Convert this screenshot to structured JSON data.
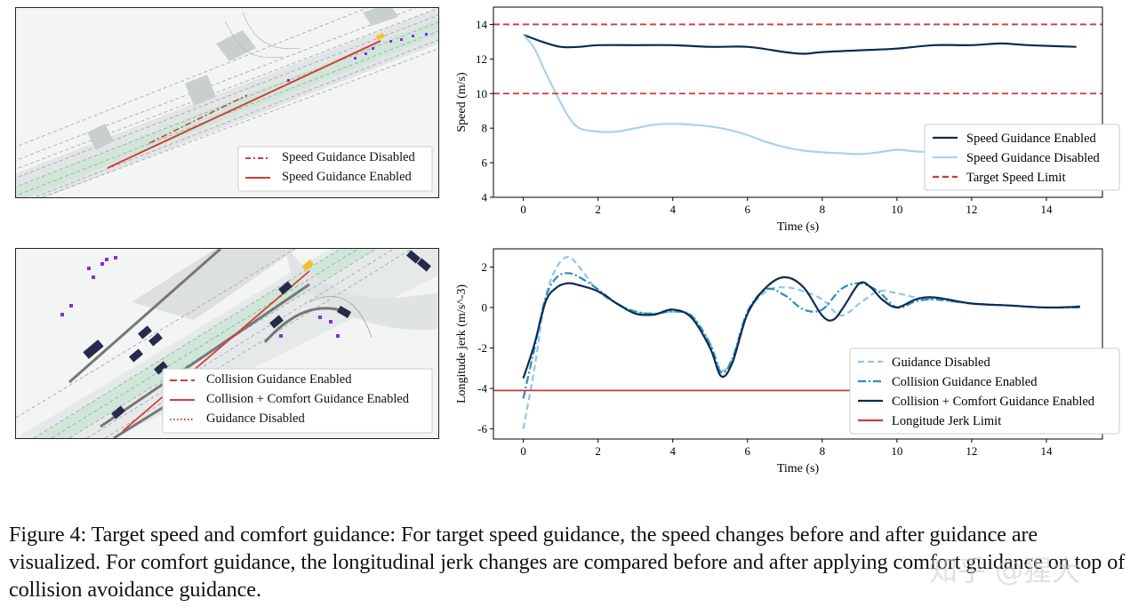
{
  "scene_top": {
    "legend": [
      "Speed Guidance Disabled",
      "Speed Guidance Enabled"
    ]
  },
  "scene_bottom": {
    "legend": [
      "Collision Guidance Enabled",
      "Collision + Comfort Guidance Enabled",
      "Guidance Disabled"
    ]
  },
  "chart_data": [
    {
      "type": "line",
      "xlabel": "Time (s)",
      "ylabel": "Speed (m/s)",
      "xlim": [
        -0.8,
        15.5
      ],
      "ylim": [
        4,
        15
      ],
      "xticks": [
        0,
        2,
        4,
        6,
        8,
        10,
        12,
        14
      ],
      "yticks": [
        4,
        6,
        8,
        10,
        12,
        14
      ],
      "legend_position": "lower-right",
      "series": [
        {
          "name": "Speed Guidance Enabled",
          "style": "solid",
          "color": "#0d2b52",
          "x": [
            0,
            0.5,
            1,
            1.5,
            2,
            3,
            4,
            5,
            6,
            7,
            7.5,
            8,
            9,
            10,
            11,
            12,
            12.8,
            13.5,
            14.8
          ],
          "y": [
            13.4,
            13.0,
            12.7,
            12.7,
            12.8,
            12.8,
            12.8,
            12.7,
            12.7,
            12.4,
            12.3,
            12.4,
            12.5,
            12.6,
            12.8,
            12.8,
            12.9,
            12.8,
            12.7
          ]
        },
        {
          "name": "Speed Guidance Disabled",
          "style": "solid",
          "color": "#a7d2ef",
          "x": [
            0,
            0.3,
            0.6,
            0.9,
            1.2,
            1.5,
            2,
            2.5,
            3,
            3.5,
            4,
            4.5,
            5,
            5.5,
            6,
            6.5,
            7,
            7.5,
            8,
            8.5,
            9,
            9.5,
            10,
            10.5,
            11,
            11.5,
            12,
            13,
            14,
            14.8
          ],
          "y": [
            13.4,
            12.6,
            11.2,
            9.9,
            8.7,
            8.0,
            7.8,
            7.8,
            8.0,
            8.2,
            8.25,
            8.2,
            8.1,
            7.9,
            7.6,
            7.2,
            6.9,
            6.7,
            6.6,
            6.55,
            6.5,
            6.6,
            6.75,
            6.65,
            6.6,
            6.55,
            6.5,
            6.5,
            6.5,
            6.4
          ]
        },
        {
          "name": "Target Speed Limit",
          "style": "dashed",
          "color": "#cd3b37",
          "hlines": [
            14,
            10
          ]
        }
      ]
    },
    {
      "type": "line",
      "xlabel": "Time (s)",
      "ylabel": "Longitude jerk (m/s^-3)",
      "xlim": [
        -0.8,
        15.5
      ],
      "ylim": [
        -6.5,
        2.9
      ],
      "xticks": [
        0,
        2,
        4,
        6,
        8,
        10,
        12,
        14
      ],
      "yticks": [
        -6,
        -4,
        -2,
        0,
        2
      ],
      "legend_position": "lower-right",
      "series": [
        {
          "name": "Guidance Disabled",
          "style": "dashed",
          "color": "#8fc7e6",
          "x": [
            0,
            0.3,
            0.6,
            0.9,
            1.2,
            1.5,
            2,
            2.5,
            3,
            3.5,
            4,
            4.5,
            5,
            5.3,
            5.6,
            6,
            6.5,
            7,
            7.5,
            8,
            8.5,
            9,
            9.5,
            10,
            10.5,
            11,
            12,
            13,
            14,
            14.9
          ],
          "y": [
            -6.0,
            -3.0,
            0.5,
            2.0,
            2.5,
            2.0,
            0.8,
            0.2,
            -0.2,
            -0.3,
            -0.2,
            -0.4,
            -1.8,
            -3.1,
            -2.5,
            -0.3,
            0.8,
            1.0,
            0.8,
            0.4,
            -0.4,
            0.2,
            0.8,
            0.7,
            0.5,
            0.4,
            0.2,
            0.1,
            0.0,
            0.0
          ]
        },
        {
          "name": "Collision Guidance Enabled",
          "style": "dashdot",
          "color": "#2a8fbd",
          "x": [
            0,
            0.3,
            0.6,
            0.9,
            1.2,
            1.5,
            2,
            2.5,
            3,
            3.5,
            4,
            4.5,
            5,
            5.3,
            5.6,
            6,
            6.5,
            7,
            7.5,
            8,
            8.5,
            9,
            9.5,
            10,
            10.5,
            11,
            12,
            13,
            14,
            14.9
          ],
          "y": [
            -4.5,
            -2.0,
            0.5,
            1.5,
            1.7,
            1.5,
            0.9,
            0.2,
            -0.2,
            -0.3,
            -0.2,
            -0.4,
            -1.8,
            -3.2,
            -2.5,
            -0.2,
            0.9,
            0.6,
            -0.1,
            -0.1,
            0.9,
            1.2,
            0.8,
            0.0,
            0.3,
            0.4,
            0.2,
            0.1,
            0.0,
            0.0
          ]
        },
        {
          "name": "Collision + Comfort Guidance Enabled",
          "style": "solid",
          "color": "#0d2b52",
          "x": [
            0,
            0.3,
            0.6,
            0.9,
            1.2,
            1.5,
            2,
            2.5,
            3,
            3.5,
            4,
            4.5,
            5,
            5.3,
            5.6,
            6,
            6.5,
            7,
            7.5,
            8,
            8.3,
            8.6,
            9,
            9.3,
            9.6,
            10,
            10.5,
            11,
            12,
            13,
            14,
            14.9
          ],
          "y": [
            -3.5,
            -1.8,
            0.3,
            1.0,
            1.2,
            1.1,
            0.8,
            0.2,
            -0.3,
            -0.35,
            -0.1,
            -0.5,
            -2.0,
            -3.4,
            -2.7,
            -0.3,
            1.0,
            1.5,
            1.0,
            -0.4,
            -0.6,
            0.1,
            1.2,
            1.0,
            0.4,
            0.0,
            0.4,
            0.5,
            0.2,
            0.1,
            0.0,
            0.05
          ]
        },
        {
          "name": "Longitude Jerk Limit",
          "style": "solid",
          "color": "#cd3b37",
          "hlines": [
            -4.1
          ]
        }
      ]
    }
  ],
  "caption": {
    "label": "Figure 4:",
    "text": "Target speed and comfort guidance: For target speed guidance, the speed changes before and after guidance are visualized. For comfort guidance, the longitudinal jerk changes are compared before and after applying comfort guidance on top of collision avoidance guidance."
  },
  "watermark": "知乎 @猩大"
}
